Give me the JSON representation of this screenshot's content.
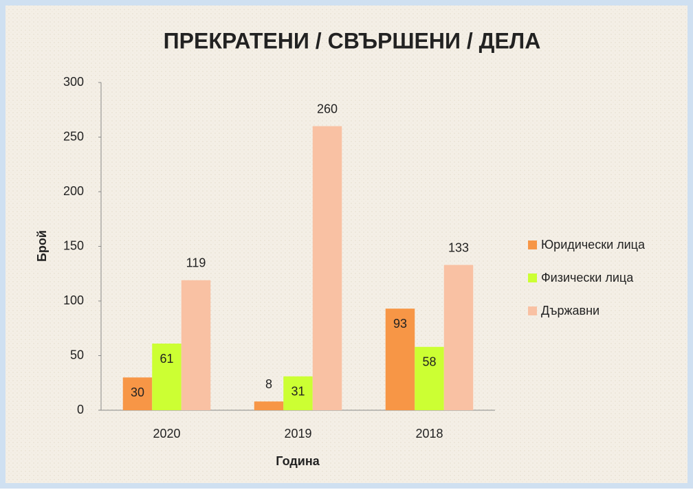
{
  "chart_data": {
    "type": "bar",
    "title": "ПРЕКРАТЕНИ / СВЪРШЕНИ / ДЕЛА",
    "x_label": "Година",
    "y_label": "Брой",
    "categories": [
      "2020",
      "2019",
      "2018"
    ],
    "series": [
      {
        "name": "Юридически лица",
        "color": "#f79646",
        "values": [
          30,
          8,
          93
        ]
      },
      {
        "name": "Физически лица",
        "color": "#ccff33",
        "values": [
          61,
          31,
          58
        ]
      },
      {
        "name": "Държавни",
        "color": "#f9c1a3",
        "values": [
          119,
          260,
          133
        ]
      }
    ],
    "ylim": [
      0,
      300
    ],
    "yticks": [
      0,
      50,
      100,
      150,
      200,
      250,
      300
    ],
    "grid": false,
    "legend": "right"
  }
}
